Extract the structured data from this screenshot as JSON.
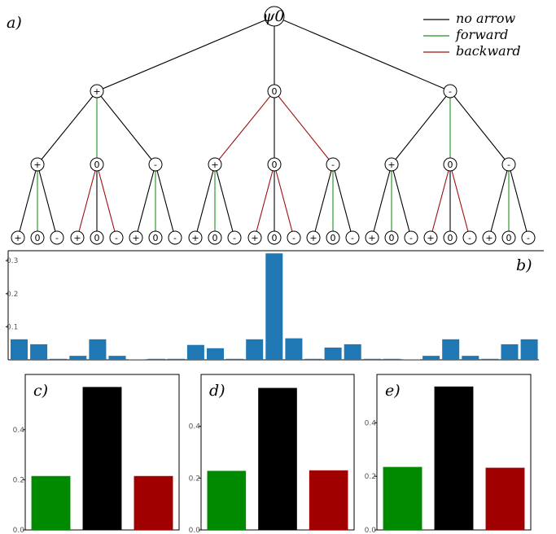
{
  "panels": {
    "a": "a)",
    "b": "b)",
    "c": "c)",
    "d": "d)",
    "e": "e)"
  },
  "legend": [
    {
      "label": "no arrow",
      "color": "#000000"
    },
    {
      "label": "forward",
      "color": "#1f8f1f"
    },
    {
      "label": "backward",
      "color": "#a01010"
    }
  ],
  "tree": {
    "root_label": "ψ0",
    "symbols": [
      "+",
      "0",
      "-"
    ]
  },
  "chart_data": [
    {
      "type": "bar",
      "panel": "b",
      "color": "#1f77b4",
      "categories": [
        "+++",
        "++0",
        "++-",
        "+0+",
        "+00",
        "+0-",
        "+-+",
        "+-0",
        "+--",
        "0++",
        "0+0",
        "0+-",
        "00+",
        "000",
        "00-",
        "0-+",
        "0-0",
        "0--",
        "-++",
        "-+0",
        "-+-",
        "-0+",
        "-00",
        "-0-",
        "--+",
        "--0",
        "---"
      ],
      "values": [
        0.062,
        0.047,
        0.003,
        0.012,
        0.062,
        0.012,
        0.001,
        0.003,
        0.003,
        0.045,
        0.035,
        0.003,
        0.062,
        0.322,
        0.065,
        0.003,
        0.037,
        0.047,
        0.003,
        0.003,
        0.001,
        0.012,
        0.062,
        0.012,
        0.003,
        0.047,
        0.062
      ],
      "ylim": [
        0,
        0.33
      ],
      "yticks": [
        "0.1",
        "0.2",
        "0.3"
      ]
    },
    {
      "type": "bar",
      "panel": "c",
      "categories": [
        "forward",
        "no arrow",
        "backward"
      ],
      "values": [
        0.215,
        0.57,
        0.215
      ],
      "colors": [
        "#008a00",
        "#000000",
        "#a00000"
      ],
      "ylim": [
        0,
        0.62
      ],
      "yticks": [
        "0.0",
        "0.2",
        "0.4"
      ]
    },
    {
      "type": "bar",
      "panel": "d",
      "categories": [
        "forward",
        "no arrow",
        "backward"
      ],
      "values": [
        0.228,
        0.548,
        0.23
      ],
      "colors": [
        "#008a00",
        "#000000",
        "#a00000"
      ],
      "ylim": [
        0,
        0.6
      ],
      "yticks": [
        "0.0",
        "0.2",
        "0.4"
      ]
    },
    {
      "type": "bar",
      "panel": "e",
      "categories": [
        "forward",
        "no arrow",
        "backward"
      ],
      "values": [
        0.235,
        0.535,
        0.232
      ],
      "colors": [
        "#008a00",
        "#000000",
        "#a00000"
      ],
      "ylim": [
        0,
        0.58
      ],
      "yticks": [
        "0.0",
        "0.2",
        "0.4"
      ]
    }
  ]
}
